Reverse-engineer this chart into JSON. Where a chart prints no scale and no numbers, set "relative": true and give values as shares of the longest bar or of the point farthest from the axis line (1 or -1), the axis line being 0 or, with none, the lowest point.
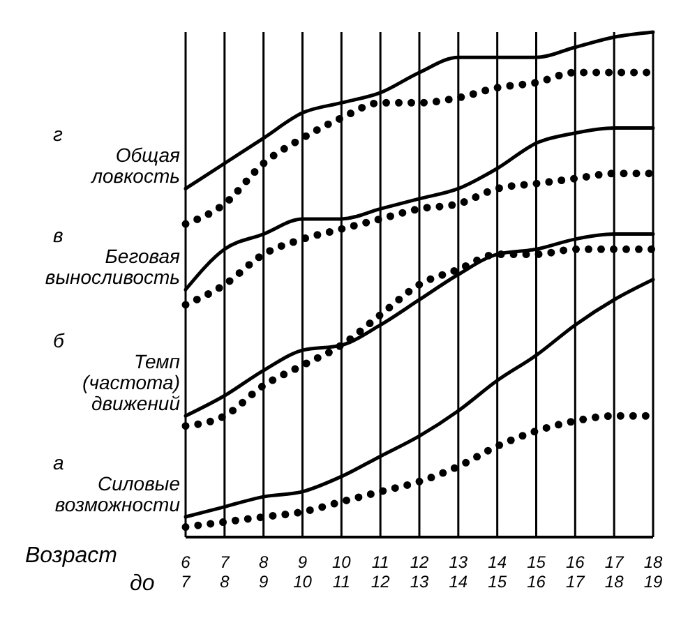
{
  "chart_data": {
    "type": "line",
    "relative": true,
    "grid": "x",
    "xlabel": "Возраст до",
    "categories": [
      "6\n7",
      "7\n8",
      "8\n9",
      "9\n10",
      "10\n11",
      "11\n12",
      "12\n13",
      "13\n14",
      "14\n15",
      "15\n16",
      "16\n17",
      "17\n18",
      "18\n19"
    ],
    "series": [
      {
        "name": "г\nОбщая\nловкость",
        "color": "#000000",
        "line_style": "solid",
        "values": [
          0.69,
          0.74,
          0.79,
          0.84,
          0.86,
          0.88,
          0.92,
          0.95,
          0.95,
          0.95,
          0.97,
          0.99,
          1.0
        ]
      },
      {
        "color": "#000000",
        "line_style": "dotted",
        "values": [
          0.62,
          0.66,
          0.74,
          0.79,
          0.83,
          0.86,
          0.86,
          0.87,
          0.89,
          0.9,
          0.92,
          0.92,
          0.92
        ]
      },
      {
        "name": "в\nБеговая\nвыносливость",
        "color": "#000000",
        "line_style": "solid",
        "values": [
          0.49,
          0.57,
          0.6,
          0.63,
          0.63,
          0.65,
          0.67,
          0.69,
          0.73,
          0.78,
          0.8,
          0.81,
          0.81
        ]
      },
      {
        "color": "#000000",
        "line_style": "dotted",
        "values": [
          0.46,
          0.5,
          0.56,
          0.59,
          0.61,
          0.63,
          0.65,
          0.66,
          0.69,
          0.7,
          0.71,
          0.72,
          0.72
        ]
      },
      {
        "name": "б\nТемп\n(частота)\nдвижений",
        "color": "#000000",
        "line_style": "solid",
        "values": [
          0.24,
          0.28,
          0.33,
          0.37,
          0.38,
          0.42,
          0.47,
          0.52,
          0.56,
          0.57,
          0.59,
          0.6,
          0.6
        ]
      },
      {
        "color": "#000000",
        "line_style": "dotted",
        "values": [
          0.22,
          0.24,
          0.3,
          0.34,
          0.38,
          0.44,
          0.5,
          0.53,
          0.56,
          0.56,
          0.57,
          0.57,
          0.57
        ]
      },
      {
        "name": "а\nСиловые\nвозможности",
        "color": "#000000",
        "line_style": "solid",
        "values": [
          0.04,
          0.06,
          0.08,
          0.09,
          0.12,
          0.16,
          0.2,
          0.25,
          0.31,
          0.36,
          0.42,
          0.47,
          0.51
        ]
      },
      {
        "color": "#000000",
        "line_style": "dotted",
        "values": [
          0.02,
          0.03,
          0.04,
          0.05,
          0.07,
          0.09,
          0.11,
          0.14,
          0.18,
          0.21,
          0.23,
          0.24,
          0.24
        ]
      }
    ]
  }
}
